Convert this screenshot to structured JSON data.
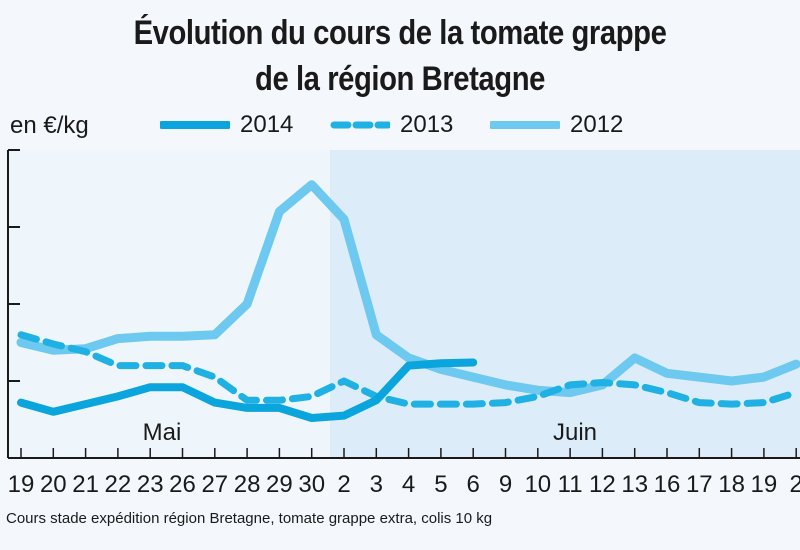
{
  "chart_data": {
    "type": "line",
    "title": "Évolution du cours de la tomate grappe",
    "subtitle": "de la région Bretagne",
    "ylabel": "en €/kg",
    "xlabel": "",
    "ylim": [
      0,
      4
    ],
    "grid": false,
    "legend_position": "top",
    "month_labels": [
      "Mai",
      "Juin"
    ],
    "categories": [
      "19",
      "20",
      "21",
      "22",
      "23",
      "26",
      "27",
      "28",
      "29",
      "30",
      "2",
      "3",
      "4",
      "5",
      "6",
      "9",
      "10",
      "11",
      "12",
      "13",
      "16",
      "17",
      "18",
      "19",
      "2"
    ],
    "series": [
      {
        "name": "2014",
        "style": "solid-thick",
        "color": "#0aa5dc",
        "values": [
          0.72,
          0.6,
          0.7,
          0.8,
          0.92,
          0.92,
          0.72,
          0.65,
          0.65,
          0.52,
          0.55,
          0.75,
          1.2,
          1.23,
          1.24,
          null,
          null,
          null,
          null,
          null,
          null,
          null,
          null,
          null,
          null
        ]
      },
      {
        "name": "2013",
        "style": "dashed",
        "color": "#1fb0e4",
        "values": [
          1.6,
          1.48,
          1.38,
          1.2,
          1.2,
          1.2,
          1.05,
          0.75,
          0.75,
          0.8,
          1.0,
          0.8,
          0.7,
          0.7,
          0.7,
          0.72,
          0.8,
          0.95,
          0.98,
          0.95,
          0.85,
          0.72,
          0.7,
          0.72,
          0.85
        ]
      },
      {
        "name": "2012",
        "style": "solid-light",
        "color": "#6dc9ef",
        "values": [
          1.5,
          1.4,
          1.42,
          1.55,
          1.58,
          1.58,
          1.6,
          2.0,
          3.2,
          3.55,
          3.1,
          1.6,
          1.3,
          1.15,
          1.05,
          0.95,
          0.88,
          0.85,
          0.95,
          1.3,
          1.1,
          1.05,
          1.0,
          1.05,
          1.22
        ]
      }
    ]
  },
  "unit_label": "en €/kg",
  "source": "Cours stade expédition région Bretagne, tomate grappe extra, colis 10 kg",
  "colors": {
    "background": "#f4f8fc",
    "plot_left": "#eef6fc",
    "plot_right": "#dcedf9",
    "axis": "#1a1a1a"
  }
}
